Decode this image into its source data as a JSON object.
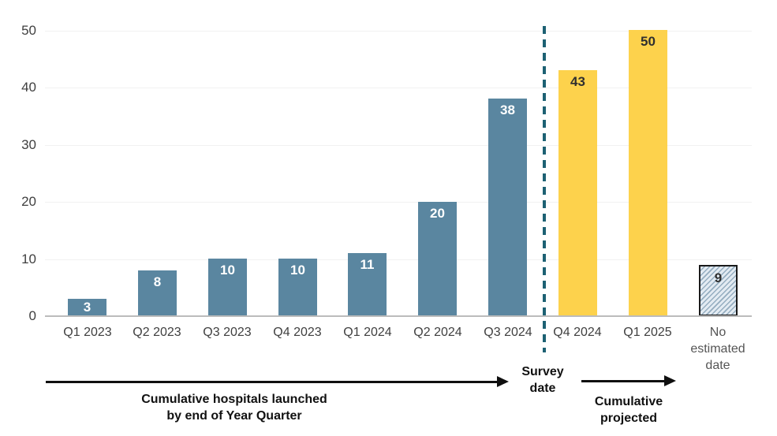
{
  "chart_data": {
    "type": "bar",
    "title": "",
    "categories": [
      "Q1 2023",
      "Q2 2023",
      "Q3 2023",
      "Q4 2023",
      "Q1 2024",
      "Q2 2024",
      "Q3 2024",
      "Q4 2024",
      "Q1 2025",
      "No estimated date"
    ],
    "values": [
      3,
      8,
      10,
      10,
      11,
      20,
      38,
      43,
      50,
      9
    ],
    "groups": [
      "actual",
      "actual",
      "actual",
      "actual",
      "actual",
      "actual",
      "actual",
      "projected",
      "projected",
      "no-date"
    ],
    "ylim": [
      0,
      50
    ],
    "yticks": [
      0,
      10,
      20,
      30,
      40,
      50
    ],
    "grid": "horizontal-light",
    "legend": "none",
    "xlabel": "",
    "ylabel": "",
    "colors": {
      "actual_bar": "#5A86A0",
      "projected_bar": "#FDD24C",
      "no_date_fill": "#E3EBF2",
      "no_date_hatch": "#94ADC0",
      "no_date_border": "#1A1A1A",
      "value_label_light": "#FFFFFF",
      "value_label_dark": "#2F2F2F",
      "survey_line": "#1D6173",
      "axis_line": "#BCBCBC",
      "tick_label": "#3F3F3F",
      "no_date_tick_label": "#555555",
      "annotation_text": "#111111"
    }
  },
  "annotations": {
    "survey_date_label": "Survey date",
    "launched_arrow_label": "Cumulative hospitals launched by end of Year Quarter",
    "projected_arrow_label": "Cumulative projected"
  }
}
